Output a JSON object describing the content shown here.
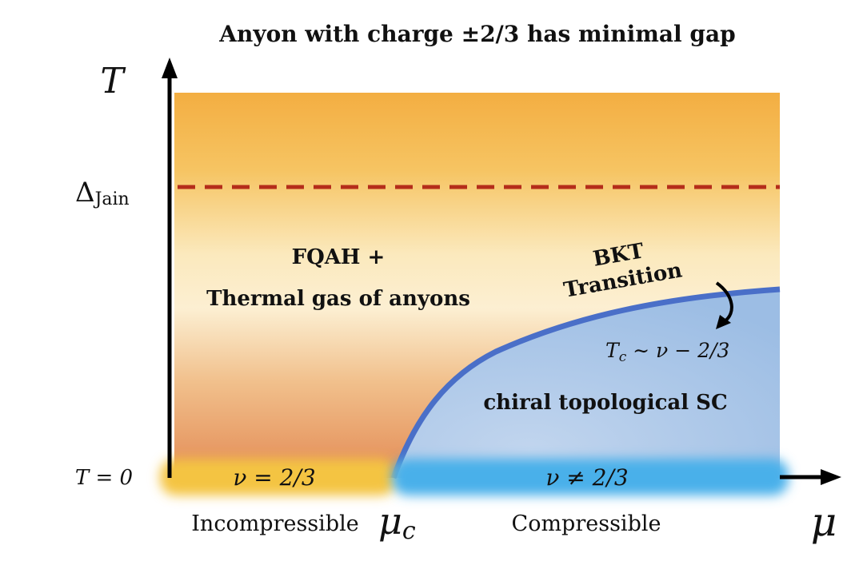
{
  "title": "Anyon with charge ±2/3 has minimal gap",
  "axes": {
    "y_label": "T",
    "x_label": "μ",
    "delta_label": "Δ",
    "delta_subscript": "Jain",
    "t_zero_label": "T = 0",
    "mu_c_label": "μ",
    "mu_c_subscript": "c"
  },
  "regions": {
    "fqah_line1": "FQAH +",
    "fqah_line2": "Thermal gas of anyons",
    "bkt_line1": "BKT",
    "bkt_line2": "Transition",
    "tc_label": "T",
    "tc_subscript": "c",
    "tc_relation": " ∼ ν − 2/3",
    "sc_label": "chiral topological SC"
  },
  "bottom_bar": {
    "left_label": "ν = 2/3",
    "right_label": "ν ≠ 2/3",
    "left_caption": "Incompressible",
    "right_caption": "Compressible"
  },
  "colors": {
    "orange_top": "#f3ae42",
    "orange_mid": "#fbe9bd",
    "orange_bottom": "#e38b55",
    "sc_blue": "#9cbde4",
    "boundary_blue": "#4a6fc8",
    "dashed_red": "#b52d1a",
    "bar_yellow": "#f4c443",
    "bar_blue": "#4ab0ea"
  }
}
